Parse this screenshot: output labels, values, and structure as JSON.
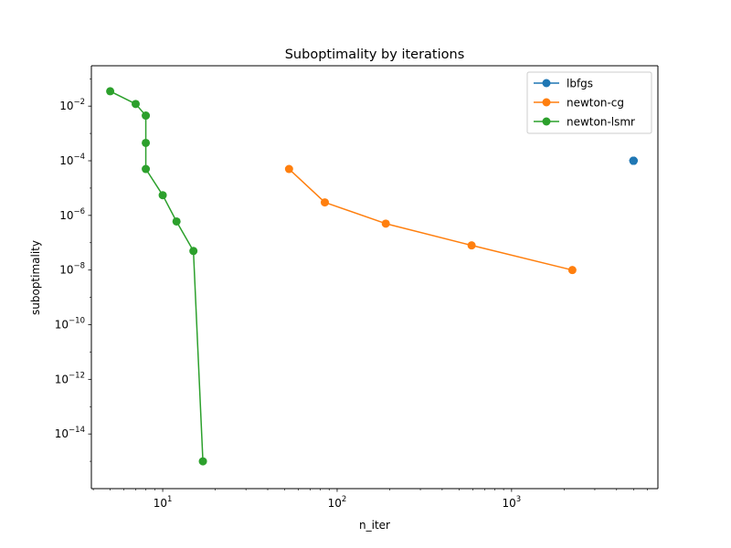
{
  "chart_data": {
    "type": "line",
    "title": "Suboptimality by iterations",
    "xlabel": "n_iter",
    "ylabel": "suboptimality",
    "xscale": "log",
    "yscale": "log",
    "xlim": [
      3.9,
      6900
    ],
    "ylim": [
      1e-16,
      0.3
    ],
    "x_ticks": [
      {
        "value": 10,
        "base": "10",
        "exp": "1"
      },
      {
        "value": 100,
        "base": "10",
        "exp": "2"
      },
      {
        "value": 1000,
        "base": "10",
        "exp": "3"
      }
    ],
    "y_ticks": [
      {
        "value": 0.01,
        "base": "10",
        "exp": "−2"
      },
      {
        "value": 0.0001,
        "base": "10",
        "exp": "−4"
      },
      {
        "value": 1e-06,
        "base": "10",
        "exp": "−6"
      },
      {
        "value": 1e-08,
        "base": "10",
        "exp": "−8"
      },
      {
        "value": 1e-10,
        "base": "10",
        "exp": "−10"
      },
      {
        "value": 1e-12,
        "base": "10",
        "exp": "−12"
      },
      {
        "value": 1e-14,
        "base": "10",
        "exp": "−14"
      }
    ],
    "legend_position": "upper right",
    "grid": false,
    "series": [
      {
        "name": "lbfgs",
        "color": "#1f77b4",
        "points": [
          [
            5000,
            0.0001
          ],
          [
            5000,
            0.0001
          ],
          [
            5000,
            0.0001
          ],
          [
            5000,
            0.0001
          ],
          [
            5000,
            0.0001
          ],
          [
            5000,
            0.0001
          ],
          [
            5000,
            0.0001
          ],
          [
            5000,
            0.0001
          ],
          [
            5000,
            0.0001
          ],
          [
            5000,
            0.0001
          ]
        ]
      },
      {
        "name": "newton-cg",
        "color": "#ff7f0e",
        "points": [
          [
            53,
            5e-05
          ],
          [
            85,
            3e-06
          ],
          [
            190,
            5e-07
          ],
          [
            590,
            8e-08
          ],
          [
            2230,
            1e-08
          ]
        ]
      },
      {
        "name": "newton-lsmr",
        "color": "#2ca02c",
        "points": [
          [
            5,
            0.035
          ],
          [
            7,
            0.012
          ],
          [
            8,
            0.0045
          ],
          [
            8,
            0.00045
          ],
          [
            8,
            5e-05
          ],
          [
            10,
            5.5e-06
          ],
          [
            12,
            6e-07
          ],
          [
            15,
            5e-08
          ],
          [
            17,
            1e-15
          ]
        ]
      }
    ]
  }
}
